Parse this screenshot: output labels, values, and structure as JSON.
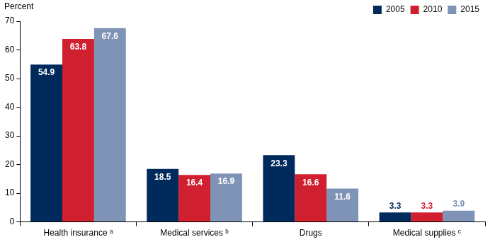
{
  "chart_data": {
    "type": "bar",
    "ylabel": "Percent",
    "categories": [
      "Health insurance ᵃ",
      "Medical services ᵇ",
      "Drugs",
      "Medical supplies ᶜ"
    ],
    "series": [
      {
        "name": "2005",
        "color": "#002a5c",
        "values": [
          54.9,
          18.5,
          23.3,
          3.3
        ]
      },
      {
        "name": "2010",
        "color": "#d01f2e",
        "values": [
          63.8,
          16.4,
          16.6,
          3.3
        ]
      },
      {
        "name": "2015",
        "color": "#7f93b6",
        "values": [
          67.6,
          16.9,
          11.6,
          3.9
        ]
      }
    ],
    "ylim": [
      0,
      70
    ],
    "yticks": [
      0,
      10,
      20,
      30,
      40,
      50,
      60,
      70
    ],
    "grid": false,
    "legend": "top-right",
    "data_labels": true
  }
}
